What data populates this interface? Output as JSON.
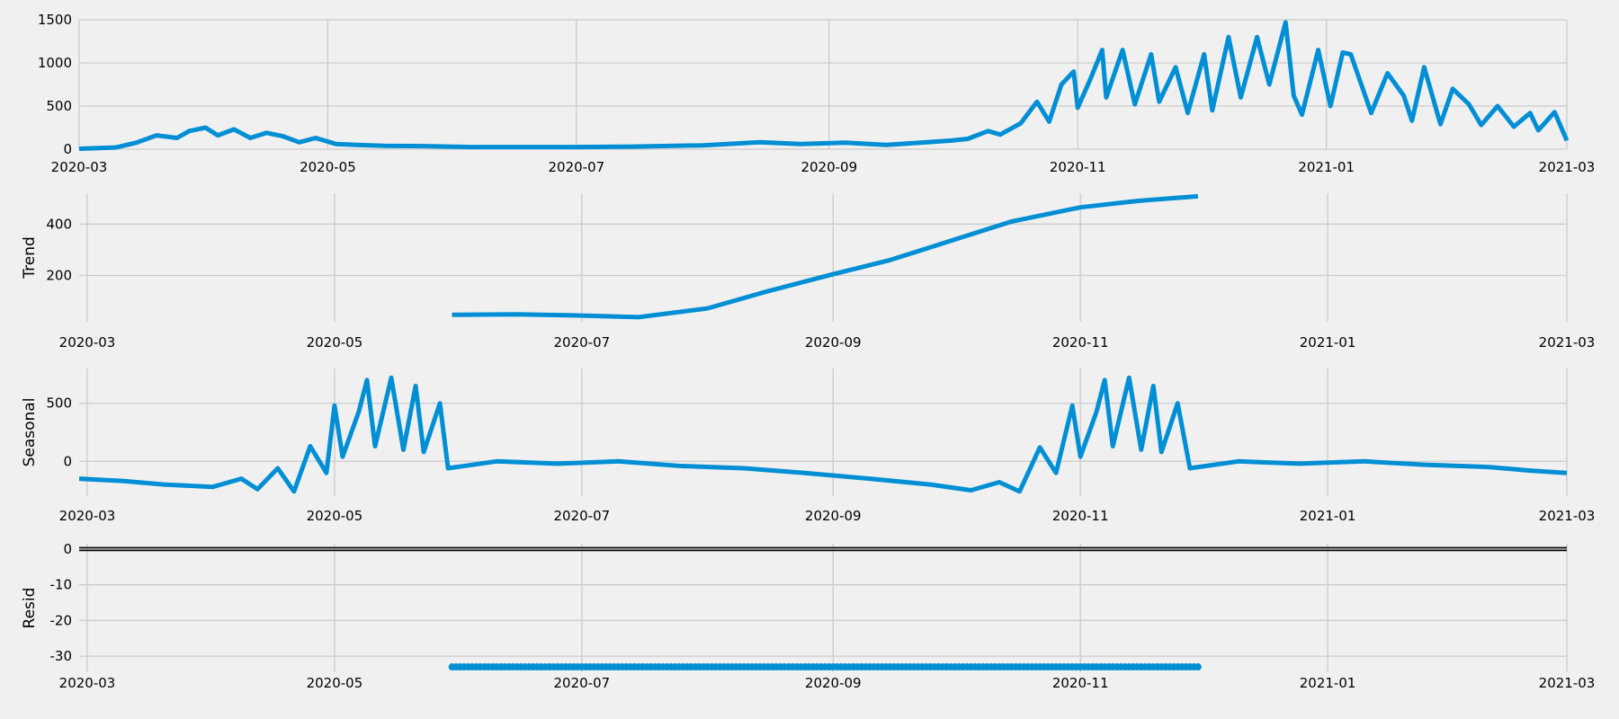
{
  "chart_data": [
    {
      "type": "line",
      "ylabel": "",
      "ylim": [
        0,
        1500
      ],
      "yticks": [
        0,
        500,
        1000,
        1500
      ],
      "xlim": [
        "2020-03-01",
        "2021-03-01"
      ],
      "xticks": [
        "2020-03",
        "2020-05",
        "2020-07",
        "2020-09",
        "2020-11",
        "2021-01",
        "2021-03"
      ],
      "series": [
        {
          "color": "#008fd5",
          "points": [
            [
              "2020-03-01",
              5
            ],
            [
              "2020-03-10",
              20
            ],
            [
              "2020-03-15",
              75
            ],
            [
              "2020-03-20",
              160
            ],
            [
              "2020-03-25",
              130
            ],
            [
              "2020-03-28",
              210
            ],
            [
              "2020-04-01",
              250
            ],
            [
              "2020-04-04",
              160
            ],
            [
              "2020-04-08",
              230
            ],
            [
              "2020-04-12",
              130
            ],
            [
              "2020-04-16",
              190
            ],
            [
              "2020-04-20",
              150
            ],
            [
              "2020-04-24",
              80
            ],
            [
              "2020-04-28",
              130
            ],
            [
              "2020-05-03",
              60
            ],
            [
              "2020-05-08",
              50
            ],
            [
              "2020-05-15",
              40
            ],
            [
              "2020-05-25",
              35
            ],
            [
              "2020-06-05",
              25
            ],
            [
              "2020-06-20",
              25
            ],
            [
              "2020-07-01",
              25
            ],
            [
              "2020-07-15",
              30
            ],
            [
              "2020-08-01",
              45
            ],
            [
              "2020-08-15",
              80
            ],
            [
              "2020-08-25",
              60
            ],
            [
              "2020-09-05",
              75
            ],
            [
              "2020-09-15",
              50
            ],
            [
              "2020-09-25",
              80
            ],
            [
              "2020-10-01",
              100
            ],
            [
              "2020-10-05",
              120
            ],
            [
              "2020-10-10",
              210
            ],
            [
              "2020-10-13",
              170
            ],
            [
              "2020-10-18",
              300
            ],
            [
              "2020-10-22",
              550
            ],
            [
              "2020-10-25",
              320
            ],
            [
              "2020-10-28",
              750
            ],
            [
              "2020-10-31",
              900
            ],
            [
              "2020-11-01",
              480
            ],
            [
              "2020-11-04",
              800
            ],
            [
              "2020-11-07",
              1150
            ],
            [
              "2020-11-08",
              600
            ],
            [
              "2020-11-12",
              1150
            ],
            [
              "2020-11-15",
              520
            ],
            [
              "2020-11-19",
              1100
            ],
            [
              "2020-11-21",
              550
            ],
            [
              "2020-11-25",
              950
            ],
            [
              "2020-11-28",
              420
            ],
            [
              "2020-12-02",
              1100
            ],
            [
              "2020-12-04",
              450
            ],
            [
              "2020-12-08",
              1300
            ],
            [
              "2020-12-11",
              600
            ],
            [
              "2020-12-15",
              1300
            ],
            [
              "2020-12-18",
              750
            ],
            [
              "2020-12-22",
              1470
            ],
            [
              "2020-12-24",
              620
            ],
            [
              "2020-12-26",
              400
            ],
            [
              "2020-12-30",
              1150
            ],
            [
              "2021-01-02",
              500
            ],
            [
              "2021-01-05",
              1120
            ],
            [
              "2021-01-07",
              1100
            ],
            [
              "2021-01-12",
              420
            ],
            [
              "2021-01-16",
              880
            ],
            [
              "2021-01-20",
              620
            ],
            [
              "2021-01-22",
              330
            ],
            [
              "2021-01-25",
              950
            ],
            [
              "2021-01-29",
              290
            ],
            [
              "2021-02-01",
              700
            ],
            [
              "2021-02-05",
              520
            ],
            [
              "2021-02-08",
              280
            ],
            [
              "2021-02-12",
              500
            ],
            [
              "2021-02-16",
              260
            ],
            [
              "2021-02-20",
              420
            ],
            [
              "2021-02-22",
              220
            ],
            [
              "2021-02-26",
              430
            ],
            [
              "2021-03-01",
              100
            ]
          ]
        }
      ]
    },
    {
      "type": "line",
      "ylabel": "Trend",
      "ylim": [
        20,
        520
      ],
      "yticks": [
        200,
        400
      ],
      "xlim": [
        "2020-02-28",
        "2021-03-01"
      ],
      "xticks": [
        "2020-03",
        "2020-05",
        "2020-07",
        "2020-09",
        "2020-11",
        "2021-01",
        "2021-03"
      ],
      "series": [
        {
          "color": "#008fd5",
          "points": [
            [
              "2020-05-30",
              47
            ],
            [
              "2020-06-15",
              49
            ],
            [
              "2020-07-01",
              44
            ],
            [
              "2020-07-15",
              38
            ],
            [
              "2020-08-01",
              72
            ],
            [
              "2020-08-15",
              135
            ],
            [
              "2020-09-01",
              205
            ],
            [
              "2020-09-15",
              260
            ],
            [
              "2020-10-01",
              340
            ],
            [
              "2020-10-15",
              410
            ],
            [
              "2020-11-01",
              465
            ],
            [
              "2020-11-15",
              490
            ],
            [
              "2020-11-30",
              508
            ]
          ]
        }
      ]
    },
    {
      "type": "line",
      "ylabel": "Seasonal",
      "ylim": [
        -300,
        800
      ],
      "yticks": [
        0,
        500
      ],
      "xlim": [
        "2020-02-28",
        "2021-03-01"
      ],
      "xticks": [
        "2020-03",
        "2020-05",
        "2020-07",
        "2020-09",
        "2020-11",
        "2021-01",
        "2021-03"
      ],
      "series": [
        {
          "color": "#008fd5",
          "points": [
            [
              "2020-02-28",
              -150
            ],
            [
              "2020-03-10",
              -170
            ],
            [
              "2020-03-20",
              -200
            ],
            [
              "2020-04-01",
              -220
            ],
            [
              "2020-04-08",
              -150
            ],
            [
              "2020-04-12",
              -240
            ],
            [
              "2020-04-17",
              -60
            ],
            [
              "2020-04-21",
              -260
            ],
            [
              "2020-04-25",
              130
            ],
            [
              "2020-04-29",
              -100
            ],
            [
              "2020-05-01",
              480
            ],
            [
              "2020-05-03",
              40
            ],
            [
              "2020-05-07",
              430
            ],
            [
              "2020-05-09",
              700
            ],
            [
              "2020-05-11",
              130
            ],
            [
              "2020-05-15",
              720
            ],
            [
              "2020-05-18",
              100
            ],
            [
              "2020-05-21",
              650
            ],
            [
              "2020-05-23",
              80
            ],
            [
              "2020-05-27",
              500
            ],
            [
              "2020-05-29",
              -60
            ],
            [
              "2020-06-10",
              0
            ],
            [
              "2020-06-25",
              -20
            ],
            [
              "2020-07-10",
              0
            ],
            [
              "2020-07-25",
              -40
            ],
            [
              "2020-08-10",
              -60
            ],
            [
              "2020-08-25",
              -100
            ],
            [
              "2020-09-10",
              -150
            ],
            [
              "2020-09-25",
              -200
            ],
            [
              "2020-10-05",
              -250
            ],
            [
              "2020-10-12",
              -180
            ],
            [
              "2020-10-17",
              -260
            ],
            [
              "2020-10-22",
              120
            ],
            [
              "2020-10-26",
              -100
            ],
            [
              "2020-10-30",
              480
            ],
            [
              "2020-11-01",
              40
            ],
            [
              "2020-11-05",
              430
            ],
            [
              "2020-11-07",
              700
            ],
            [
              "2020-11-09",
              130
            ],
            [
              "2020-11-13",
              720
            ],
            [
              "2020-11-16",
              100
            ],
            [
              "2020-11-19",
              650
            ],
            [
              "2020-11-21",
              80
            ],
            [
              "2020-11-25",
              500
            ],
            [
              "2020-11-28",
              -60
            ],
            [
              "2020-12-10",
              0
            ],
            [
              "2020-12-25",
              -20
            ],
            [
              "2021-01-10",
              0
            ],
            [
              "2021-01-25",
              -30
            ],
            [
              "2021-02-10",
              -50
            ],
            [
              "2021-02-20",
              -80
            ],
            [
              "2021-03-01",
              -100
            ]
          ]
        }
      ]
    },
    {
      "type": "scatter",
      "ylabel": "Resid",
      "ylim": [
        -34.5,
        1.5
      ],
      "yticks": [
        -30,
        -20,
        -10,
        0
      ],
      "xlim": [
        "2020-02-28",
        "2021-03-01"
      ],
      "xticks": [
        "2020-03",
        "2020-05",
        "2020-07",
        "2020-09",
        "2020-11",
        "2021-01",
        "2021-03"
      ],
      "hline": 0,
      "series": [
        {
          "color": "#008fd5",
          "x_start": "2020-05-30",
          "x_end": "2020-11-30",
          "y": -33.0
        }
      ]
    }
  ]
}
